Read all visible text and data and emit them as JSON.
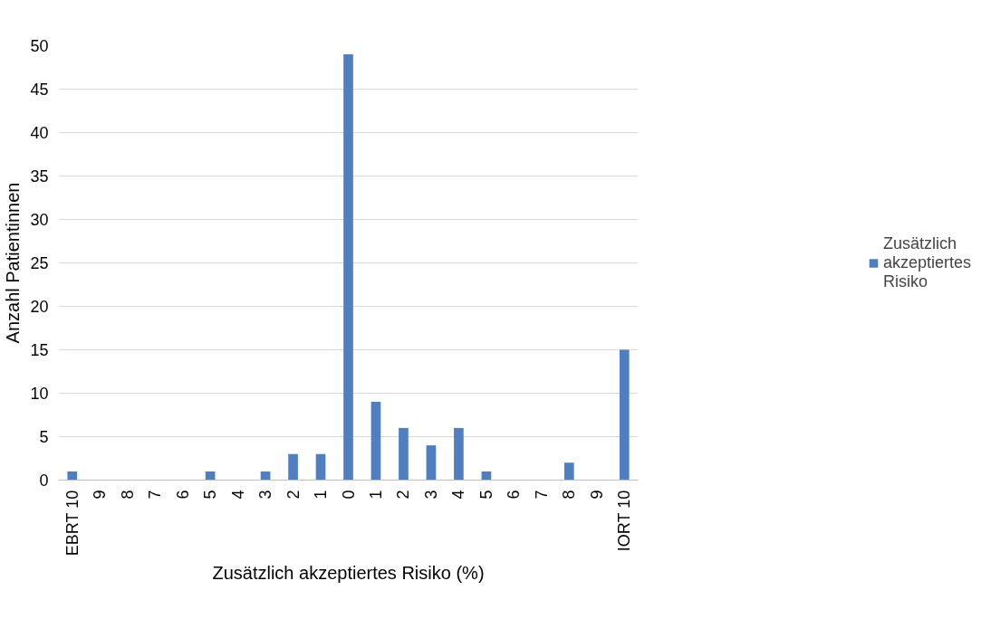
{
  "chart_data": {
    "type": "bar",
    "xlabel": "Zusätzlich akzeptiertes Risiko (%)",
    "ylabel": "Anzahl Patientinnen",
    "categories": [
      "EBRT 10",
      "9",
      "8",
      "7",
      "6",
      "5",
      "4",
      "3",
      "2",
      "1",
      "0",
      "1",
      "2",
      "3",
      "4",
      "5",
      "6",
      "7",
      "8",
      "9",
      "IORT 10"
    ],
    "series": [
      {
        "name": "Zusätzlich akzeptiertes Risiko",
        "color": "#4f7fc0",
        "values": [
          1,
          0,
          0,
          0,
          0,
          1,
          0,
          1,
          3,
          3,
          49,
          9,
          6,
          4,
          6,
          1,
          0,
          0,
          2,
          0,
          15
        ]
      }
    ],
    "ylim": [
      0,
      50
    ],
    "yticks": [
      0,
      5,
      10,
      15,
      20,
      25,
      30,
      35,
      40,
      45,
      50
    ],
    "grid": "y",
    "legend": "right"
  }
}
